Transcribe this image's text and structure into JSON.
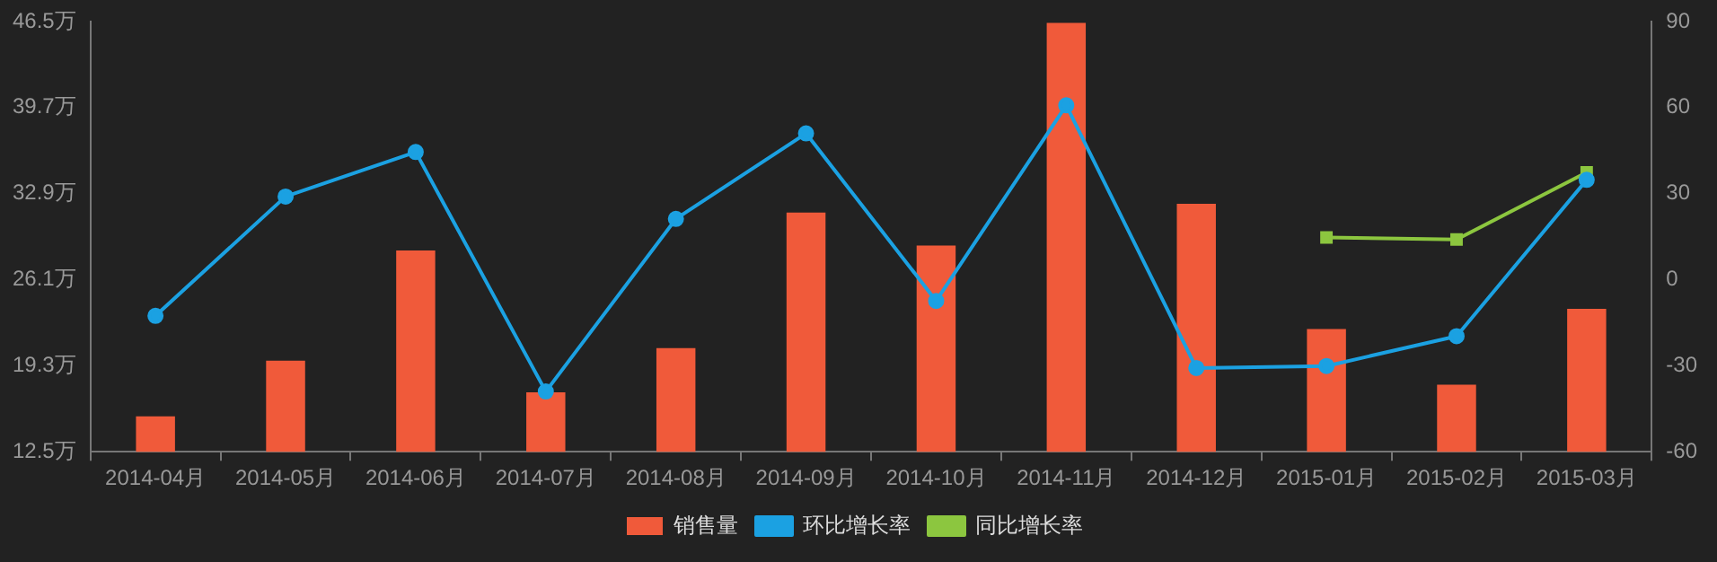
{
  "chart_data": {
    "type": "bar",
    "categories": [
      "2014-04月",
      "2014-05月",
      "2014-06月",
      "2014-07月",
      "2014-08月",
      "2014-09月",
      "2014-10月",
      "2014-11月",
      "2014-12月",
      "2015-01月",
      "2015-02月",
      "2015-03月"
    ],
    "series": [
      {
        "name": "销售量",
        "color": "#f05a3a",
        "values": [
          15.3,
          19.7,
          28.4,
          17.2,
          20.7,
          31.4,
          28.8,
          46.4,
          32.1,
          22.2,
          17.8,
          23.8
        ]
      },
      {
        "name": "环比增长率",
        "type": "line",
        "axis": "y2",
        "color": "#1ba1e2",
        "marker": "circle",
        "values": [
          -12.6,
          29,
          44.5,
          -39,
          21.2,
          51,
          -7.4,
          60.8,
          -30.8,
          -30.1,
          -19.7,
          34.8
        ]
      },
      {
        "name": "同比增长率",
        "type": "line",
        "axis": "y2",
        "color": "#8cc63f",
        "marker": "square",
        "values": [
          null,
          null,
          null,
          null,
          null,
          null,
          null,
          null,
          null,
          14.7,
          14,
          37.4
        ]
      }
    ],
    "ylim": [
      12.5,
      46.5
    ],
    "yticks": [
      {
        "value": 12.5,
        "label": "12.5万"
      },
      {
        "value": 19.3,
        "label": "19.3万"
      },
      {
        "value": 26.1,
        "label": "26.1万"
      },
      {
        "value": 32.9,
        "label": "32.9万"
      },
      {
        "value": 39.7,
        "label": "39.7万"
      },
      {
        "value": 46.5,
        "label": "46.5万"
      }
    ],
    "y2lim": [
      -60,
      90
    ],
    "y2ticks": [
      -60,
      -30,
      0,
      30,
      60,
      90
    ],
    "grid": false,
    "legend": "bottom"
  }
}
